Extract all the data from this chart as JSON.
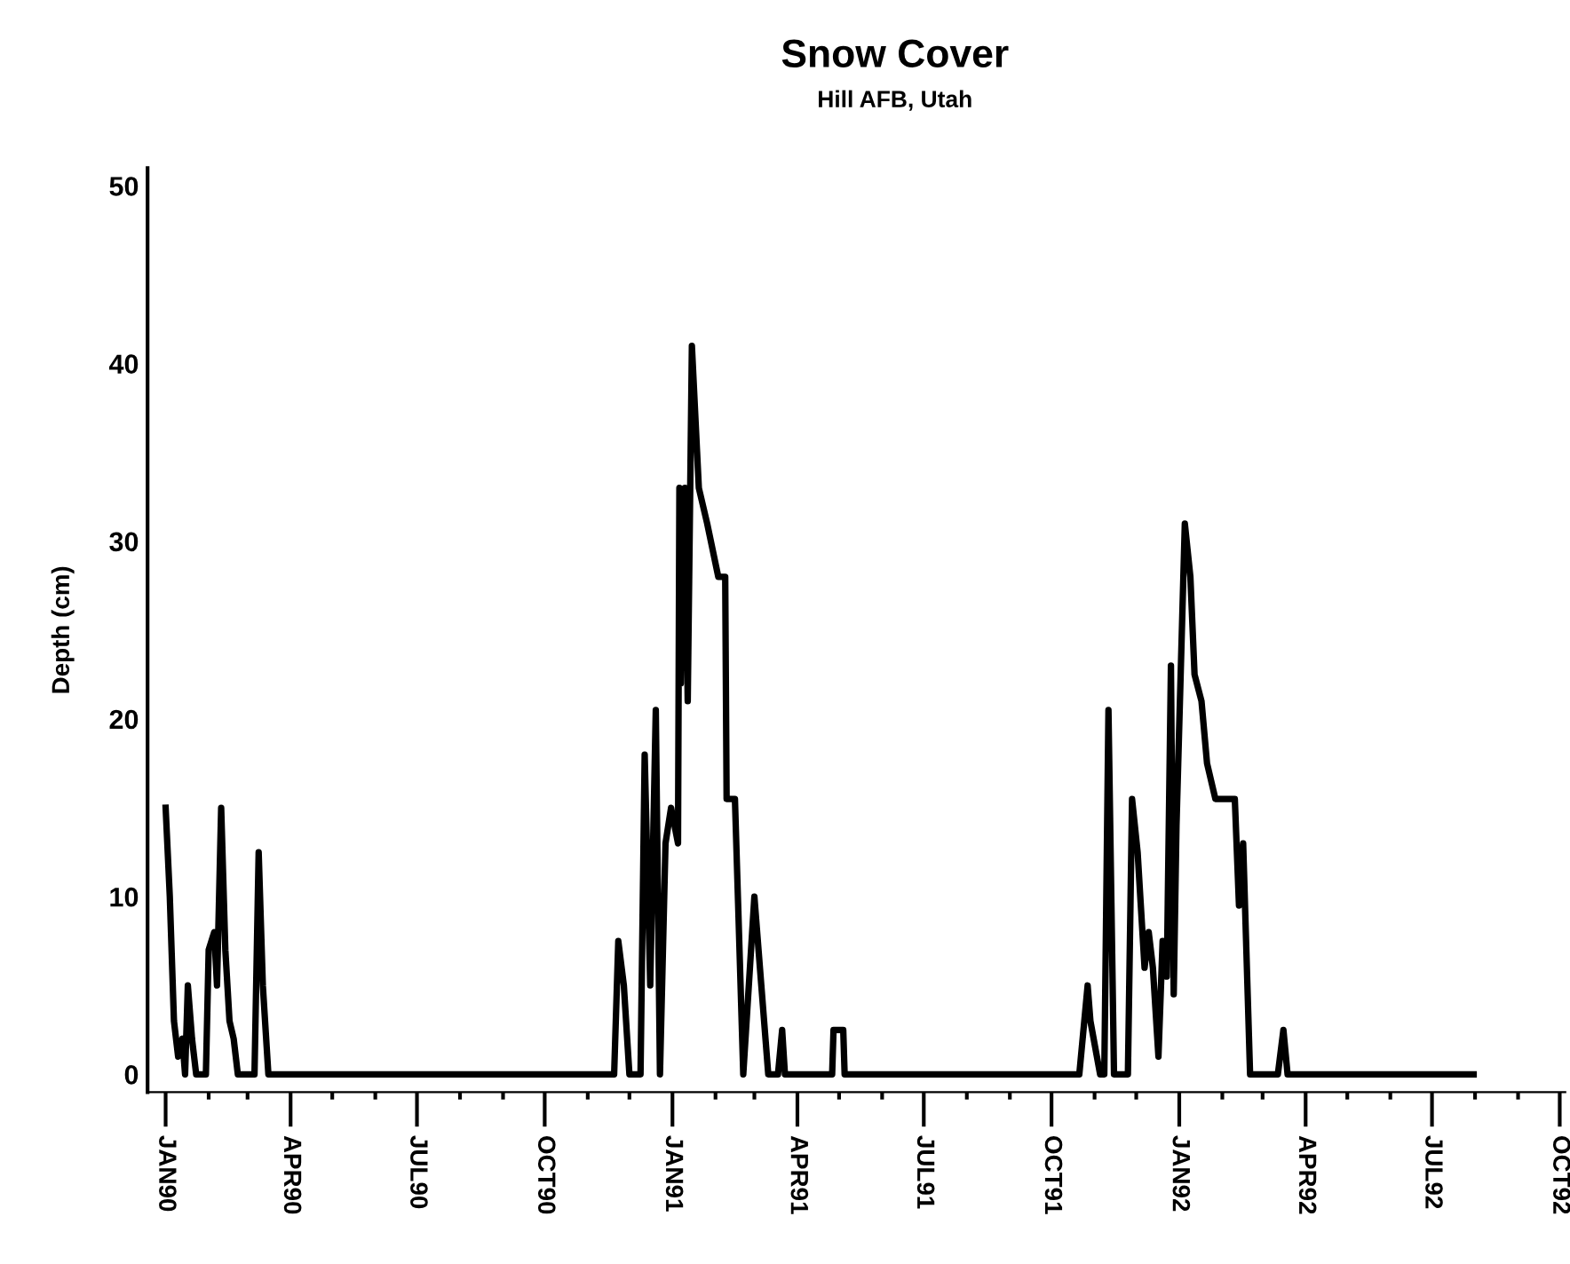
{
  "chart_data": {
    "type": "line",
    "title": "Snow Cover",
    "subtitle": "Hill AFB, Utah",
    "ylabel": "Depth (cm)",
    "xlim": [
      "1989-12-19",
      "1992-10-05"
    ],
    "ylim": [
      -1,
      51
    ],
    "yticks": [
      0,
      10,
      20,
      30,
      40,
      50
    ],
    "xticks": [
      {
        "value": "1990-01-01",
        "label": "JAN90"
      },
      {
        "value": "1990-02-01",
        "label": null
      },
      {
        "value": "1990-03-01",
        "label": null
      },
      {
        "value": "1990-04-01",
        "label": "APR90"
      },
      {
        "value": "1990-05-01",
        "label": null
      },
      {
        "value": "1990-06-01",
        "label": null
      },
      {
        "value": "1990-07-01",
        "label": "JUL90"
      },
      {
        "value": "1990-08-01",
        "label": null
      },
      {
        "value": "1990-09-01",
        "label": null
      },
      {
        "value": "1990-10-01",
        "label": "OCT90"
      },
      {
        "value": "1990-11-01",
        "label": null
      },
      {
        "value": "1990-12-01",
        "label": null
      },
      {
        "value": "1991-01-01",
        "label": "JAN91"
      },
      {
        "value": "1991-02-01",
        "label": null
      },
      {
        "value": "1991-03-01",
        "label": null
      },
      {
        "value": "1991-04-01",
        "label": "APR91"
      },
      {
        "value": "1991-05-01",
        "label": null
      },
      {
        "value": "1991-06-01",
        "label": null
      },
      {
        "value": "1991-07-01",
        "label": "JUL91"
      },
      {
        "value": "1991-08-01",
        "label": null
      },
      {
        "value": "1991-09-01",
        "label": null
      },
      {
        "value": "1991-10-01",
        "label": "OCT91"
      },
      {
        "value": "1991-11-01",
        "label": null
      },
      {
        "value": "1991-12-01",
        "label": null
      },
      {
        "value": "1992-01-01",
        "label": "JAN92"
      },
      {
        "value": "1992-02-01",
        "label": null
      },
      {
        "value": "1992-03-01",
        "label": null
      },
      {
        "value": "1992-04-01",
        "label": "APR92"
      },
      {
        "value": "1992-05-01",
        "label": null
      },
      {
        "value": "1992-06-01",
        "label": null
      },
      {
        "value": "1992-07-01",
        "label": "JUL92"
      },
      {
        "value": "1992-08-01",
        "label": null
      },
      {
        "value": "1992-09-01",
        "label": null
      },
      {
        "value": "1992-10-01",
        "label": "OCT92"
      }
    ],
    "grid": false,
    "marker": "none",
    "line_style": "solid",
    "series": [
      {
        "color": "#000000",
        "x": [
          "1990-01-01",
          "1990-01-04",
          "1990-01-07",
          "1990-01-10",
          "1990-01-13",
          "1990-01-15",
          "1990-01-17",
          "1990-01-20",
          "1990-01-23",
          "1990-01-30",
          "1990-02-01",
          "1990-02-05",
          "1990-02-07",
          "1990-02-10",
          "1990-02-13",
          "1990-02-16",
          "1990-02-19",
          "1990-02-22",
          "1990-03-06",
          "1990-03-09",
          "1990-03-12",
          "1990-03-16",
          "1990-11-20",
          "1990-11-23",
          "1990-11-27",
          "1990-12-01",
          "1990-12-09",
          "1990-12-12",
          "1990-12-16",
          "1990-12-20",
          "1990-12-23",
          "1990-12-27",
          "1990-12-31",
          "1991-01-05",
          "1991-01-06",
          "1991-01-07",
          "1991-01-08",
          "1991-01-09",
          "1991-01-10",
          "1991-01-12",
          "1991-01-15",
          "1991-01-20",
          "1991-01-26",
          "1991-02-03",
          "1991-02-08",
          "1991-02-09",
          "1991-02-15",
          "1991-02-21",
          "1991-03-01",
          "1991-03-06",
          "1991-03-11",
          "1991-03-18",
          "1991-03-21",
          "1991-03-23",
          "1991-04-26",
          "1991-04-27",
          "1991-05-04",
          "1991-05-05",
          "1991-10-21",
          "1991-10-27",
          "1991-10-29",
          "1991-11-05",
          "1991-11-08",
          "1991-11-11",
          "1991-11-15",
          "1991-11-25",
          "1991-11-28",
          "1991-12-02",
          "1991-12-07",
          "1991-12-10",
          "1991-12-13",
          "1991-12-17",
          "1991-12-20",
          "1991-12-23",
          "1991-12-26",
          "1991-12-28",
          "1991-12-30",
          "1992-01-05",
          "1992-01-09",
          "1992-01-12",
          "1992-01-17",
          "1992-01-21",
          "1992-01-27",
          "1992-02-10",
          "1992-02-13",
          "1992-02-16",
          "1992-02-21",
          "1992-03-12",
          "1992-03-16",
          "1992-03-19",
          "1992-07-31"
        ],
        "values": [
          15,
          10,
          3,
          1,
          2,
          0,
          5,
          2,
          0,
          0,
          7,
          8,
          5,
          15,
          7,
          3,
          2,
          0,
          0,
          12.5,
          5,
          0,
          0,
          7.5,
          5,
          0,
          0,
          18,
          5,
          20.5,
          0,
          13,
          15,
          13,
          33,
          22,
          31,
          24,
          33,
          21,
          41,
          33,
          31,
          28,
          28,
          15.5,
          15.5,
          0,
          10,
          5,
          0,
          0,
          2.5,
          0,
          0,
          2.5,
          2.5,
          0,
          0,
          5,
          3,
          0,
          0,
          20.5,
          0,
          0,
          15.5,
          12.5,
          6,
          8,
          6,
          1,
          7.5,
          5.5,
          23,
          4.5,
          14,
          31,
          28,
          22.5,
          21,
          17.5,
          15.5,
          15.5,
          9.5,
          13,
          0,
          0,
          2.5,
          0,
          0
        ]
      }
    ]
  }
}
